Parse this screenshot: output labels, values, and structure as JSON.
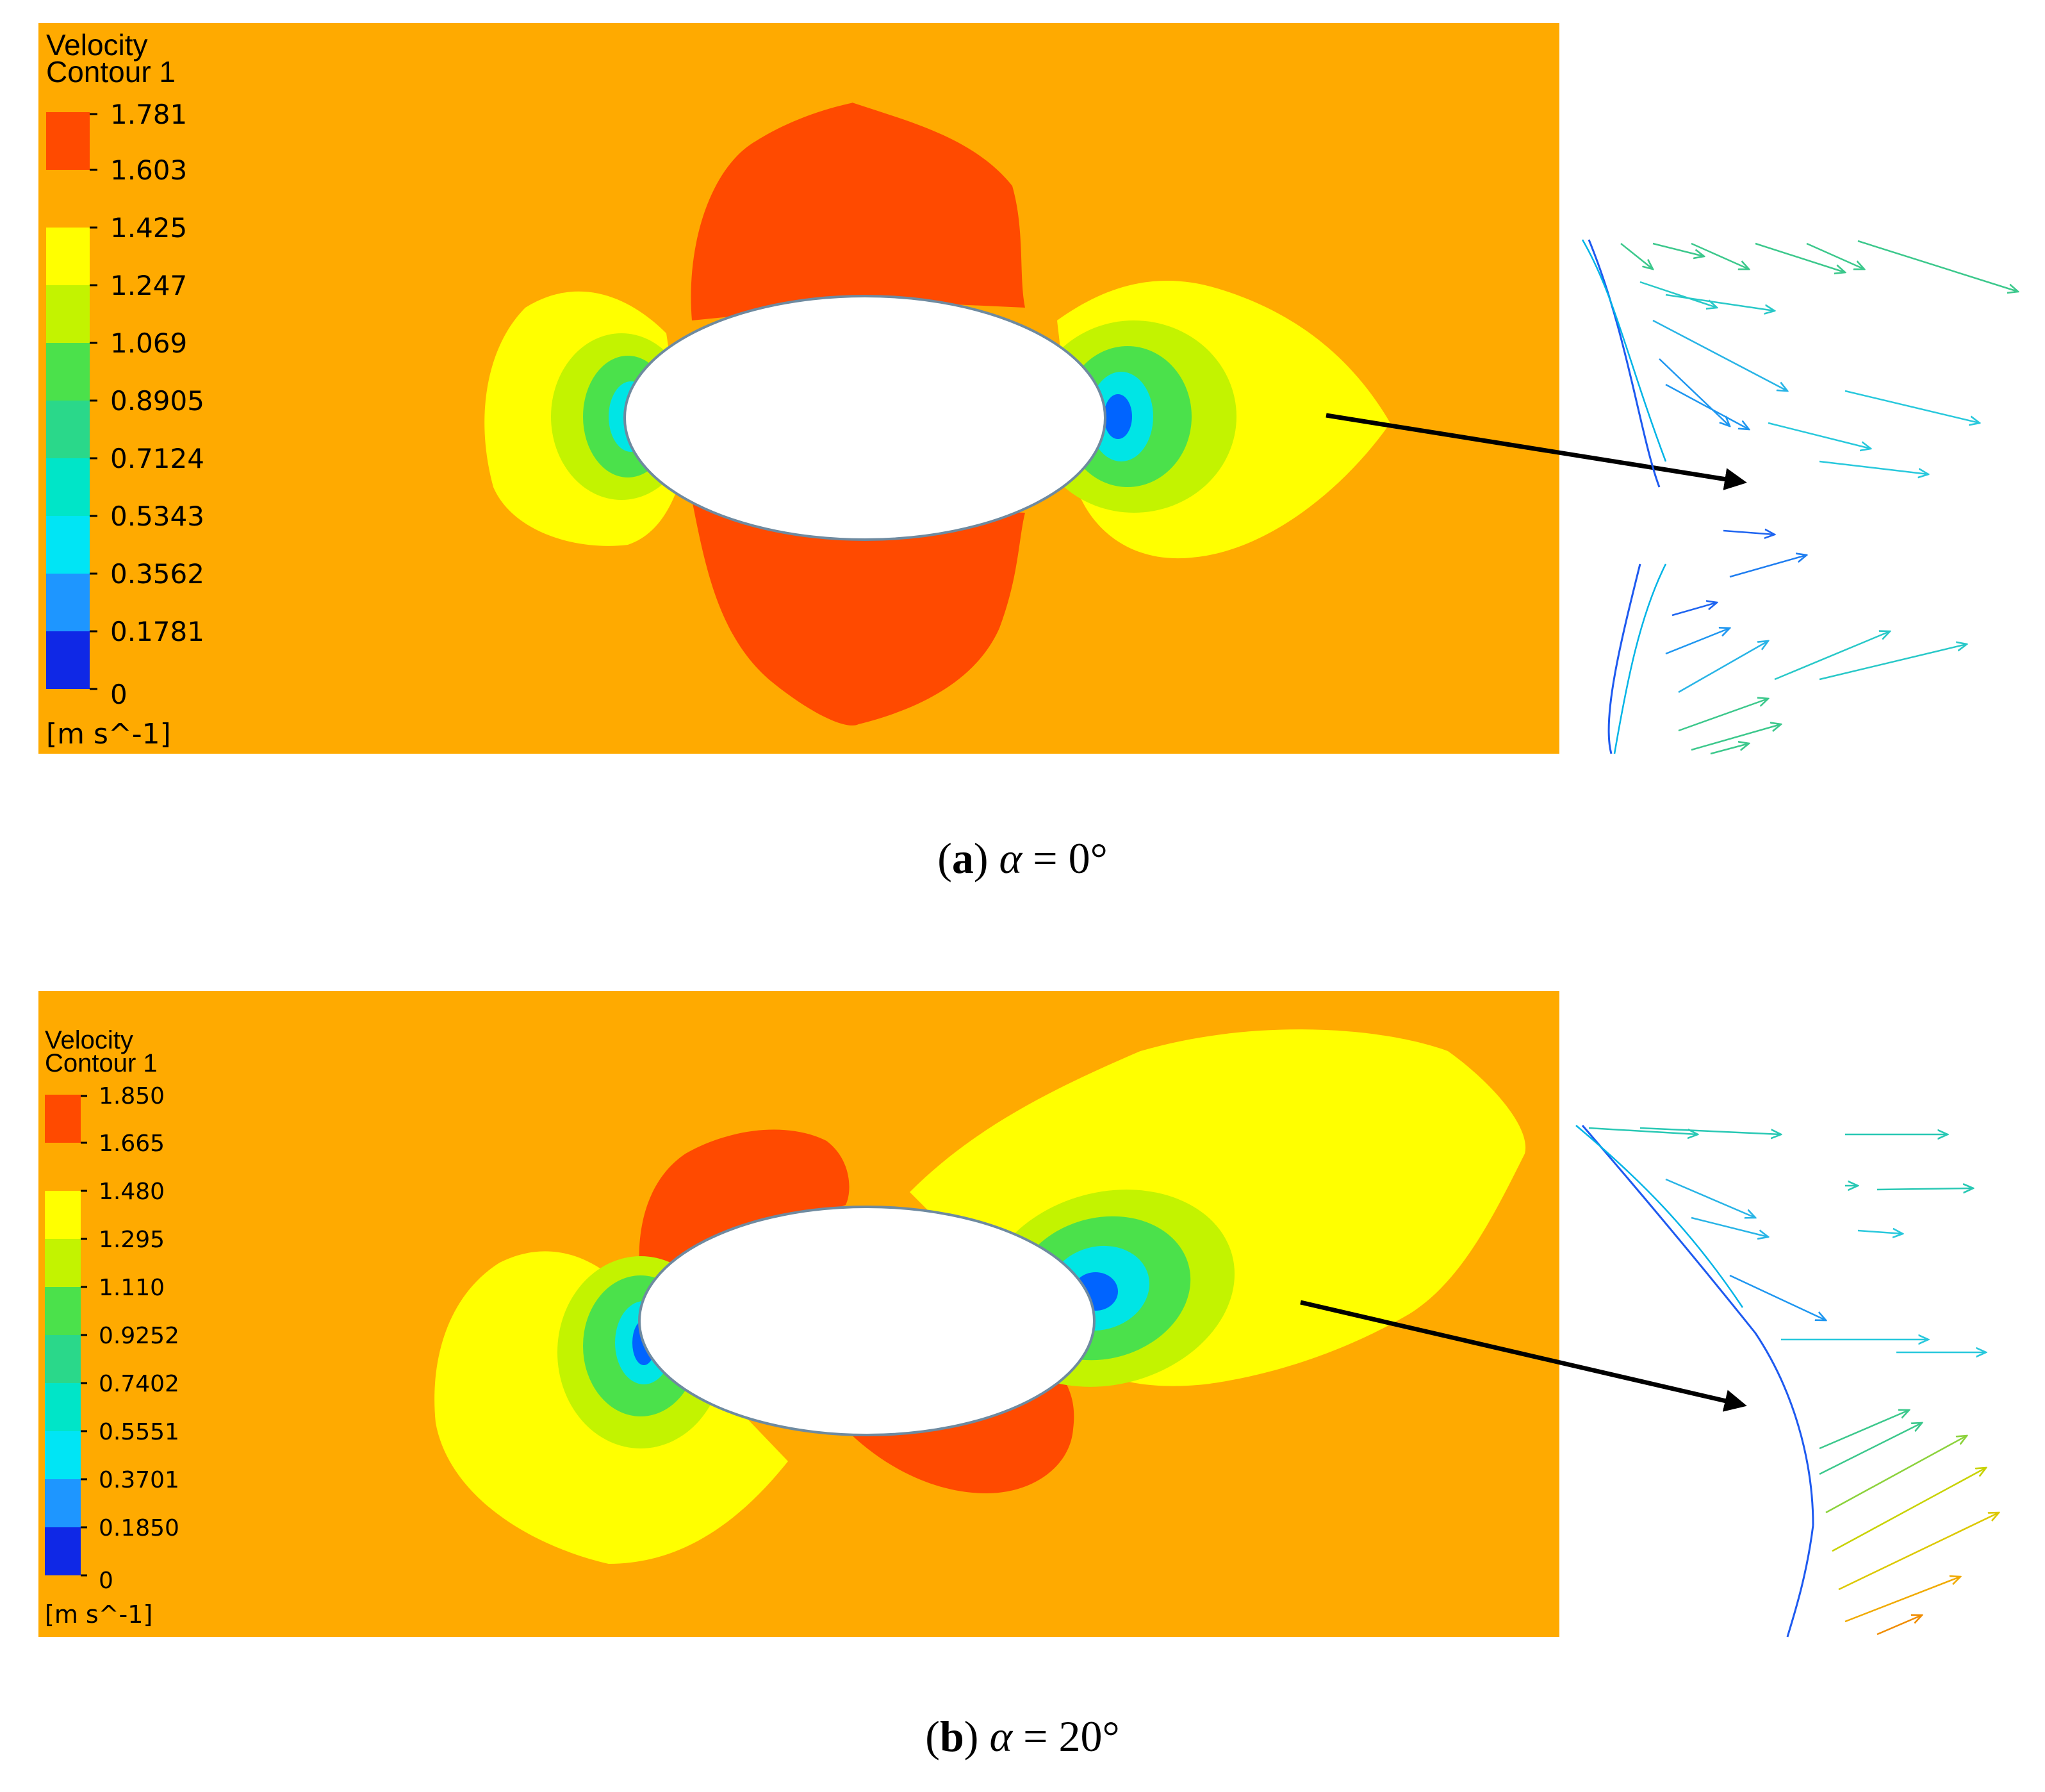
{
  "panel_a": {
    "legend_title_line1": "Velocity",
    "legend_title_line2": "Contour 1",
    "levels": [
      "1.781",
      "1.603",
      "1.425",
      "1.247",
      "1.069",
      "0.8905",
      "0.7124",
      "0.5343",
      "0.3562",
      "0.1781",
      "0"
    ],
    "unit": "[m s^-1]",
    "caption_letter": "a",
    "caption_symbol": "α",
    "caption_value": " = 0°"
  },
  "panel_b": {
    "legend_title_line1": "Velocity",
    "legend_title_line2": "Contour 1",
    "levels": [
      "1.850",
      "1.665",
      "1.480",
      "1.295",
      "1.110",
      "0.9252",
      "0.7402",
      "0.5551",
      "0.3701",
      "0.1850",
      "0"
    ],
    "unit": "[m s^-1]",
    "caption_letter": "b",
    "caption_symbol": "α",
    "caption_value": " = 20°"
  },
  "colors": {
    "background_field": "#FFAA00",
    "high_velocity": "#FF4A00",
    "mid_velocity": "#FFFF00",
    "lime": "#C3F300",
    "green": "#4BE14B",
    "cyan": "#00E5E5",
    "blue": "#0064FF",
    "deep_blue": "#0F28E6",
    "arrow": "#000000"
  }
}
